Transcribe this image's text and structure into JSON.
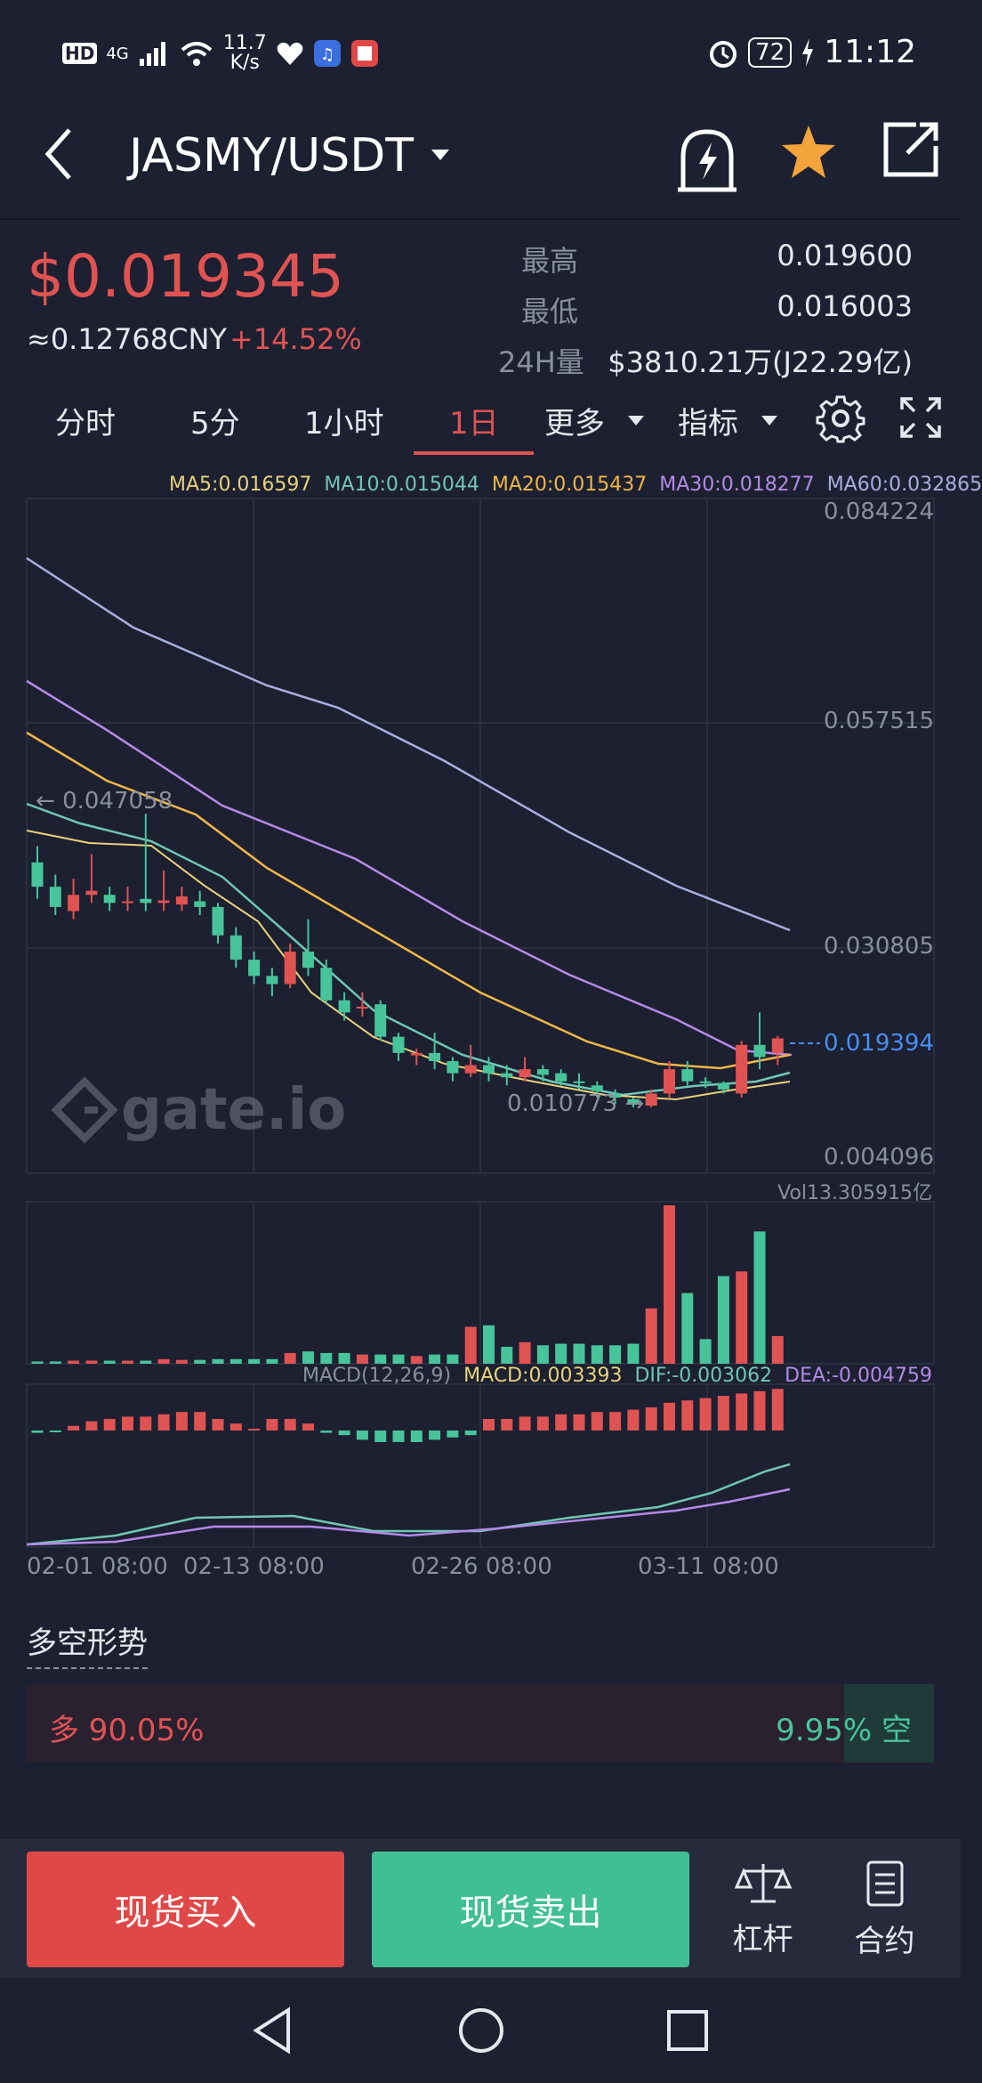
{
  "status_bar": {
    "hd": "HD",
    "net": "4G",
    "speed_value": "11.7",
    "speed_unit": "K/s",
    "battery": "72",
    "time": "11:12"
  },
  "header": {
    "pair": "JASMY/USDT"
  },
  "ticker": {
    "price": "$0.019345",
    "cny": "≈0.12768CNY",
    "change": "+14.52%",
    "high_label": "最高",
    "high_value": "0.019600",
    "low_label": "最低",
    "low_value": "0.016003",
    "vol_label": "24H量",
    "vol_value": "$3810.21万(J22.29亿)"
  },
  "timeframes": [
    "分时",
    "5分",
    "1小时",
    "1日",
    "更多",
    "指标"
  ],
  "active_timeframe": "1日",
  "ma_legend": {
    "ma5": "MA5:0.016597",
    "ma10": "MA10:0.015044",
    "ma20": "MA20:0.015437",
    "ma30": "MA30:0.018277",
    "ma60": "MA60:0.032865"
  },
  "colors": {
    "up": "#e05353",
    "down": "#48c49a",
    "ma5": "#e8d27a",
    "ma10": "#6fc7b3",
    "ma20": "#f0b648",
    "ma30": "#b48ae8",
    "ma60": "#a9aee0"
  },
  "chart": {
    "y_ticks": [
      "0.084224",
      "0.057515",
      "0.030805",
      "0.004096"
    ],
    "current_price_label": "0.019394",
    "high_marker": "0.047058",
    "low_marker": "0.010773",
    "volume_label": "Vol13.305915亿",
    "macd_legend": {
      "params": "MACD(12,26,9)",
      "macd": "MACD:0.003393",
      "dif": "DIF:-0.003062",
      "dea": "DEA:-0.004759"
    },
    "x_ticks": [
      "02-01 08:00",
      "02-13 08:00",
      "02-26 08:00",
      "03-11 08:00"
    ],
    "watermark": "gate.io"
  },
  "chart_data": {
    "type": "candlestick",
    "ylim": [
      0.004096,
      0.084224
    ],
    "candles": [
      {
        "o": 0.041,
        "c": 0.038,
        "h": 0.043,
        "l": 0.0365
      },
      {
        "o": 0.038,
        "c": 0.0355,
        "h": 0.0395,
        "l": 0.0345
      },
      {
        "o": 0.035,
        "c": 0.037,
        "h": 0.039,
        "l": 0.034
      },
      {
        "o": 0.037,
        "c": 0.0375,
        "h": 0.042,
        "l": 0.036
      },
      {
        "o": 0.037,
        "c": 0.036,
        "h": 0.038,
        "l": 0.035
      },
      {
        "o": 0.036,
        "c": 0.0362,
        "h": 0.038,
        "l": 0.035
      },
      {
        "o": 0.0365,
        "c": 0.036,
        "h": 0.047,
        "l": 0.035
      },
      {
        "o": 0.036,
        "c": 0.0363,
        "h": 0.04,
        "l": 0.035
      },
      {
        "o": 0.0358,
        "c": 0.0368,
        "h": 0.038,
        "l": 0.035
      },
      {
        "o": 0.0362,
        "c": 0.0355,
        "h": 0.0375,
        "l": 0.0345
      },
      {
        "o": 0.0355,
        "c": 0.032,
        "h": 0.036,
        "l": 0.031
      },
      {
        "o": 0.032,
        "c": 0.029,
        "h": 0.033,
        "l": 0.028
      },
      {
        "o": 0.029,
        "c": 0.027,
        "h": 0.03,
        "l": 0.026
      },
      {
        "o": 0.027,
        "c": 0.026,
        "h": 0.028,
        "l": 0.0245
      },
      {
        "o": 0.026,
        "c": 0.03,
        "h": 0.031,
        "l": 0.0255
      },
      {
        "o": 0.03,
        "c": 0.028,
        "h": 0.034,
        "l": 0.027
      },
      {
        "o": 0.028,
        "c": 0.024,
        "h": 0.029,
        "l": 0.0235
      },
      {
        "o": 0.024,
        "c": 0.0225,
        "h": 0.025,
        "l": 0.0215
      },
      {
        "o": 0.023,
        "c": 0.0232,
        "h": 0.025,
        "l": 0.022
      },
      {
        "o": 0.0235,
        "c": 0.0195,
        "h": 0.024,
        "l": 0.019
      },
      {
        "o": 0.0195,
        "c": 0.0175,
        "h": 0.02,
        "l": 0.0165
      },
      {
        "o": 0.0172,
        "c": 0.0175,
        "h": 0.018,
        "l": 0.016
      },
      {
        "o": 0.0175,
        "c": 0.0165,
        "h": 0.02,
        "l": 0.0155
      },
      {
        "o": 0.0165,
        "c": 0.015,
        "h": 0.017,
        "l": 0.014
      },
      {
        "o": 0.015,
        "c": 0.016,
        "h": 0.0185,
        "l": 0.0145
      },
      {
        "o": 0.016,
        "c": 0.015,
        "h": 0.017,
        "l": 0.014
      },
      {
        "o": 0.015,
        "c": 0.0145,
        "h": 0.016,
        "l": 0.0135
      },
      {
        "o": 0.0145,
        "c": 0.0155,
        "h": 0.017,
        "l": 0.014
      },
      {
        "o": 0.0155,
        "c": 0.0148,
        "h": 0.016,
        "l": 0.014
      },
      {
        "o": 0.015,
        "c": 0.014,
        "h": 0.0155,
        "l": 0.0135
      },
      {
        "o": 0.014,
        "c": 0.0138,
        "h": 0.015,
        "l": 0.013
      },
      {
        "o": 0.0135,
        "c": 0.0128,
        "h": 0.014,
        "l": 0.012
      },
      {
        "o": 0.0125,
        "c": 0.012,
        "h": 0.013,
        "l": 0.0112
      },
      {
        "o": 0.0118,
        "c": 0.0112,
        "h": 0.012,
        "l": 0.0108
      },
      {
        "o": 0.011,
        "c": 0.0125,
        "h": 0.013,
        "l": 0.0108
      },
      {
        "o": 0.0125,
        "c": 0.0155,
        "h": 0.0165,
        "l": 0.012
      },
      {
        "o": 0.0155,
        "c": 0.014,
        "h": 0.0165,
        "l": 0.0135
      },
      {
        "o": 0.014,
        "c": 0.0138,
        "h": 0.0145,
        "l": 0.0132
      },
      {
        "o": 0.0138,
        "c": 0.013,
        "h": 0.014,
        "l": 0.0125
      },
      {
        "o": 0.0125,
        "c": 0.0185,
        "h": 0.019,
        "l": 0.012
      },
      {
        "o": 0.0185,
        "c": 0.017,
        "h": 0.0225,
        "l": 0.0155
      },
      {
        "o": 0.0175,
        "c": 0.0193,
        "h": 0.0196,
        "l": 0.016
      }
    ],
    "volume": [
      0.15,
      0.15,
      0.2,
      0.2,
      0.2,
      0.2,
      0.2,
      0.3,
      0.25,
      0.25,
      0.3,
      0.3,
      0.3,
      0.3,
      0.7,
      0.8,
      0.7,
      0.7,
      0.6,
      0.6,
      0.6,
      0.5,
      0.6,
      0.6,
      2.4,
      2.5,
      1.1,
      1.4,
      1.2,
      1.3,
      1.3,
      1.2,
      1.2,
      1.3,
      3.6,
      10.3,
      4.6,
      1.6,
      5.7,
      6.0,
      8.6,
      1.8
    ],
    "macd_hist": [
      -0.1,
      -0.05,
      0.2,
      0.4,
      0.5,
      0.6,
      0.6,
      0.7,
      0.8,
      0.8,
      0.5,
      0.3,
      0.0,
      0.5,
      0.5,
      0.3,
      -0.1,
      -0.2,
      -0.4,
      -0.5,
      -0.5,
      -0.5,
      -0.4,
      -0.3,
      -0.2,
      0.5,
      0.5,
      0.6,
      0.6,
      0.7,
      0.7,
      0.8,
      0.8,
      0.9,
      1.0,
      1.2,
      1.3,
      1.4,
      1.5,
      1.6,
      1.7,
      1.8
    ]
  },
  "bias": {
    "title": "多空形势",
    "long_label": "多 90.05%",
    "short_label": "9.95% 空",
    "long_pct": 90.05
  },
  "bottom": {
    "buy": "现货买入",
    "sell": "现货卖出",
    "leverage": "杠杆",
    "contract": "合约"
  }
}
